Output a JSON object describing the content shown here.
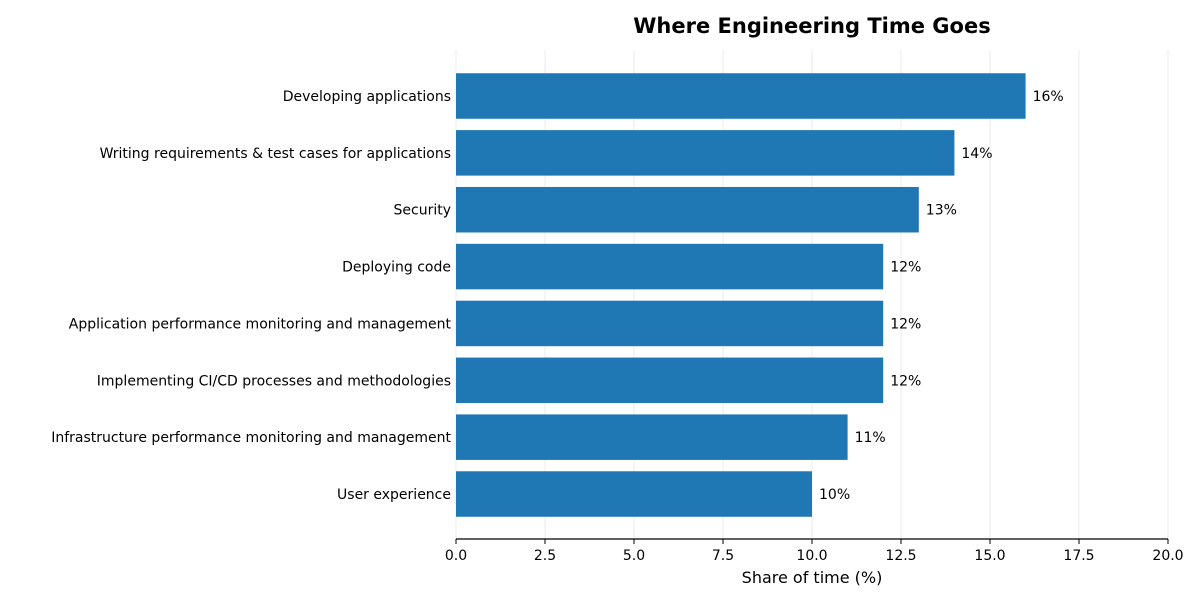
{
  "chart_data": {
    "type": "bar",
    "orientation": "horizontal",
    "title": "Where Engineering Time Goes",
    "xlabel": "Share of time (%)",
    "ylabel": "",
    "xlim": [
      0,
      20
    ],
    "xticks": [
      "0.0",
      "2.5",
      "5.0",
      "7.5",
      "10.0",
      "12.5",
      "15.0",
      "17.5",
      "20.0"
    ],
    "grid": "x",
    "bar_color": "#1f77b4",
    "categories": [
      "Developing applications",
      "Writing requirements & test cases for applications",
      "Security",
      "Deploying code",
      "Application performance monitoring and management",
      "Implementing CI/CD processes and methodologies",
      "Infrastructure performance monitoring and management",
      "User experience"
    ],
    "values": [
      16,
      14,
      13,
      12,
      12,
      12,
      11,
      10
    ],
    "data_labels": [
      "16%",
      "14%",
      "13%",
      "12%",
      "12%",
      "12%",
      "11%",
      "10%"
    ]
  }
}
